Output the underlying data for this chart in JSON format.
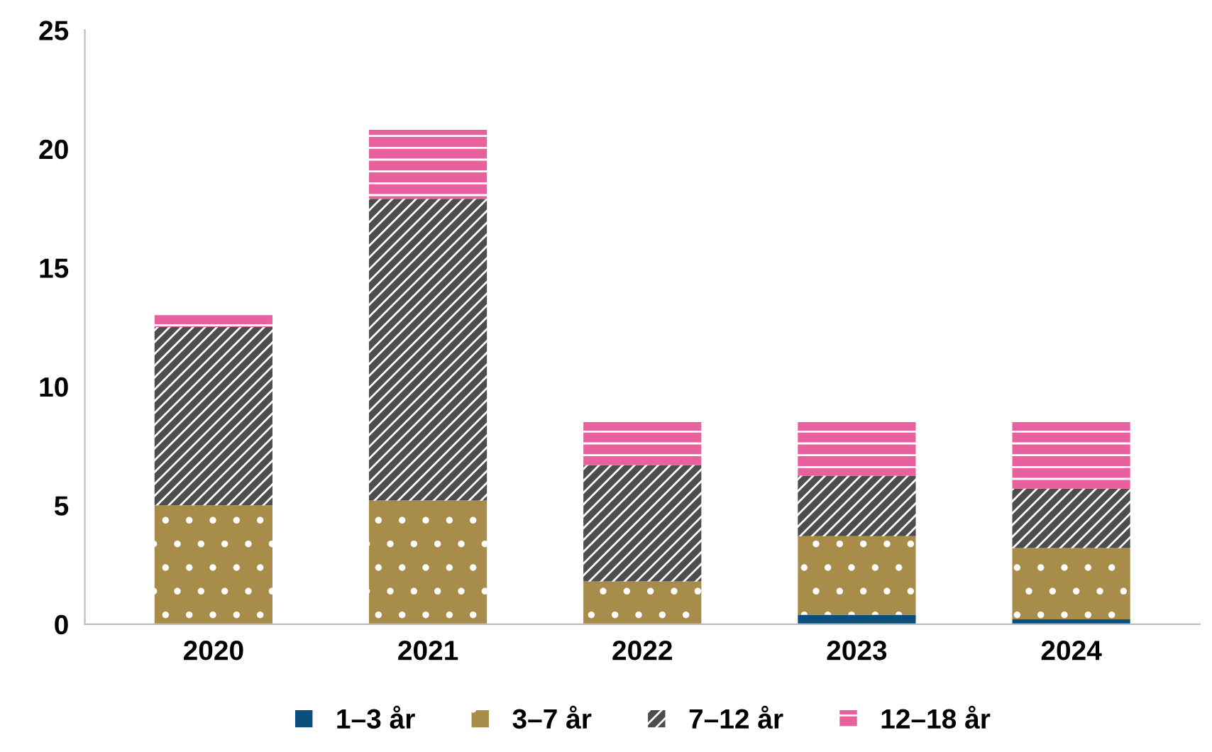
{
  "chart_data": {
    "type": "bar",
    "stacked": true,
    "categories": [
      "2020",
      "2021",
      "2022",
      "2023",
      "2024"
    ],
    "series": [
      {
        "name": "1–3 år",
        "color": "#0b4f7c",
        "values": [
          0,
          0,
          0,
          0.4,
          0.2
        ]
      },
      {
        "name": "3–7 år",
        "color": "#a88c4a",
        "values": [
          5.0,
          5.2,
          1.8,
          3.3,
          3.0
        ]
      },
      {
        "name": "7–12 år",
        "color": "#4d4d4d",
        "values": [
          7.5,
          12.7,
          4.9,
          2.55,
          2.5
        ]
      },
      {
        "name": "12–18 år",
        "color": "#e8609e",
        "values": [
          0.5,
          2.9,
          1.8,
          2.25,
          2.8
        ]
      }
    ],
    "ylim": [
      0,
      25
    ],
    "yticks": [
      0,
      5,
      10,
      15,
      20,
      25
    ],
    "grid": false,
    "legend": "bottom"
  }
}
